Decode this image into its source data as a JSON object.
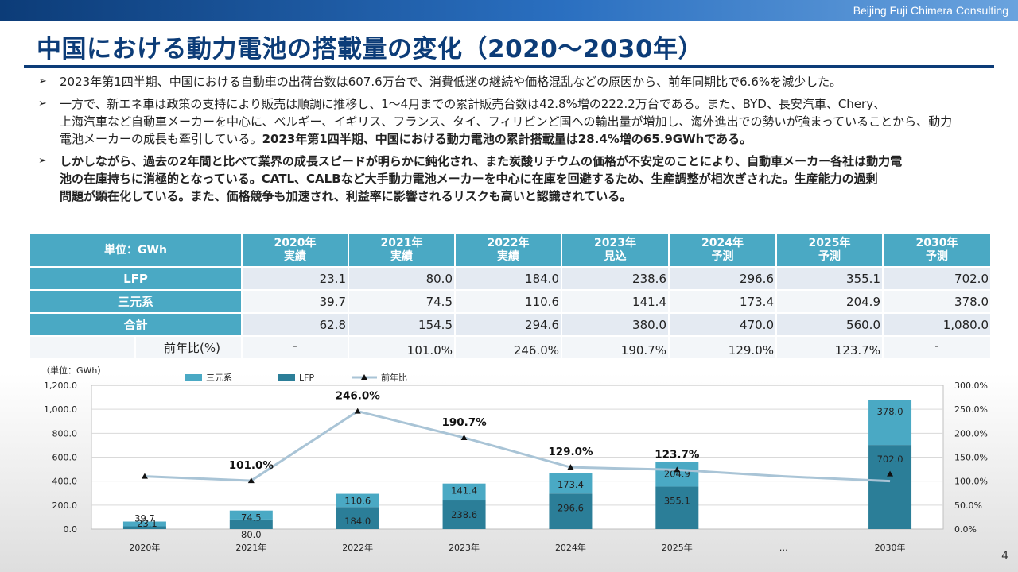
{
  "header": {
    "company": "Beijing Fuji Chimera Consulting",
    "title": "中国における動力電池の搭載量の変化（2020～2030年）",
    "page_number": "4"
  },
  "bullets": {
    "marker": "➢",
    "b1": "2023年第1四半期、中国における自動車の出荷台数は607.6万台で、消費低迷の継続や価格混乱などの原因から、前年同期比で6.6%を減少した。",
    "b2_line1": "一方で、新エネ車は政策の支持により販売は順調に推移し、1～4月までの累計販売台数は42.8%増の222.2万台である。また、BYD、長安汽車、Chery、",
    "b2_line2": "上海汽車など自動車メーカーを中心に、ベルギー、イギリス、フランス、タイ、フィリピンど国への輸出量が増加し、海外進出での勢いが強まっていることから、動力",
    "b2_line3": "電池メーカーの成長も牽引している。",
    "b2_bold": "2023年第1四半期、中国における動力電池の累計搭載量は28.4%増の65.9GWhである。",
    "b3_line1": "しかしながら、過去の2年間と比べて業界の成長スピードが明らかに鈍化され、また炭酸リチウムの価格が不安定のことにより、自動車メーカー各社は動力電",
    "b3_line2": "池の在庫持ちに消極的となっている。CATL、CALBなど大手動力電池メーカーを中心に在庫を回避するため、生産調整が相次ぎされた。生産能力の過剰",
    "b3_line3": "問題が顕在化している。また、価格競争も加速され、利益率に影響されるリスクも高いと認識されている。"
  },
  "table": {
    "unit_header": "単位：GWh",
    "columns": [
      {
        "year": "2020年",
        "status": "実績"
      },
      {
        "year": "2021年",
        "status": "実績"
      },
      {
        "year": "2022年",
        "status": "実績"
      },
      {
        "year": "2023年",
        "status": "見込"
      },
      {
        "year": "2024年",
        "status": "予測"
      },
      {
        "year": "2025年",
        "status": "予測"
      },
      {
        "year": "2030年",
        "status": "予測"
      }
    ],
    "rows": [
      {
        "label": "LFP",
        "values": [
          "23.1",
          "80.0",
          "184.0",
          "238.6",
          "296.6",
          "355.1",
          "702.0"
        ]
      },
      {
        "label": "三元系",
        "values": [
          "39.7",
          "74.5",
          "110.6",
          "141.4",
          "173.4",
          "204.9",
          "378.0"
        ]
      },
      {
        "label": "合計",
        "values": [
          "62.8",
          "154.5",
          "294.6",
          "380.0",
          "470.0",
          "560.0",
          "1,080.0"
        ]
      }
    ],
    "yoy_label": "前年比(%)",
    "yoy_values": [
      "-",
      "101.0%",
      "246.0%",
      "190.7%",
      "129.0%",
      "123.7%",
      "-"
    ]
  },
  "chart_data": {
    "type": "bar",
    "stacked": true,
    "unit_label": "（単位：GWh）",
    "categories": [
      "2020年",
      "2021年",
      "2022年",
      "2023年",
      "2024年",
      "2025年",
      "…",
      "2030年"
    ],
    "series": [
      {
        "name": "LFP",
        "type": "bar",
        "color": "#2b7e98",
        "values": [
          23.1,
          80.0,
          184.0,
          238.6,
          296.6,
          355.1,
          null,
          702.0
        ]
      },
      {
        "name": "三元系",
        "type": "bar",
        "color": "#4aa9c4",
        "values": [
          39.7,
          74.5,
          110.6,
          141.4,
          173.4,
          204.9,
          null,
          378.0
        ]
      },
      {
        "name": "前年比",
        "type": "line",
        "axis": "right",
        "color": "#a9c4d6",
        "marker_color": "#111111",
        "values": [
          110,
          101.0,
          246.0,
          190.7,
          129.0,
          123.7,
          110,
          100
        ]
      }
    ],
    "bar_labels": {
      "LFP": [
        "23.1",
        "80.0",
        "184.0",
        "238.6",
        "296.6",
        "355.1",
        "",
        "702.0"
      ],
      "三元系": [
        "39.7",
        "74.5",
        "110.6",
        "141.4",
        "173.4",
        "204.9",
        "",
        "378.0"
      ]
    },
    "yoy_labels": [
      "",
      "101.0%",
      "246.0%",
      "190.7%",
      "129.0%",
      "123.7%",
      "",
      ""
    ],
    "legend": [
      "三元系",
      "LFP",
      "前年比"
    ],
    "y_left": {
      "min": 0,
      "max": 1200,
      "ticks": [
        "0.0",
        "200.0",
        "400.0",
        "600.0",
        "800.0",
        "1,000.0",
        "1,200.0"
      ]
    },
    "y_right": {
      "min": 0,
      "max": 300,
      "ticks": [
        "0.0%",
        "50.0%",
        "100.0%",
        "150.0%",
        "200.0%",
        "250.0%",
        "300.0%"
      ]
    },
    "grid": true,
    "legend_position": "top"
  }
}
